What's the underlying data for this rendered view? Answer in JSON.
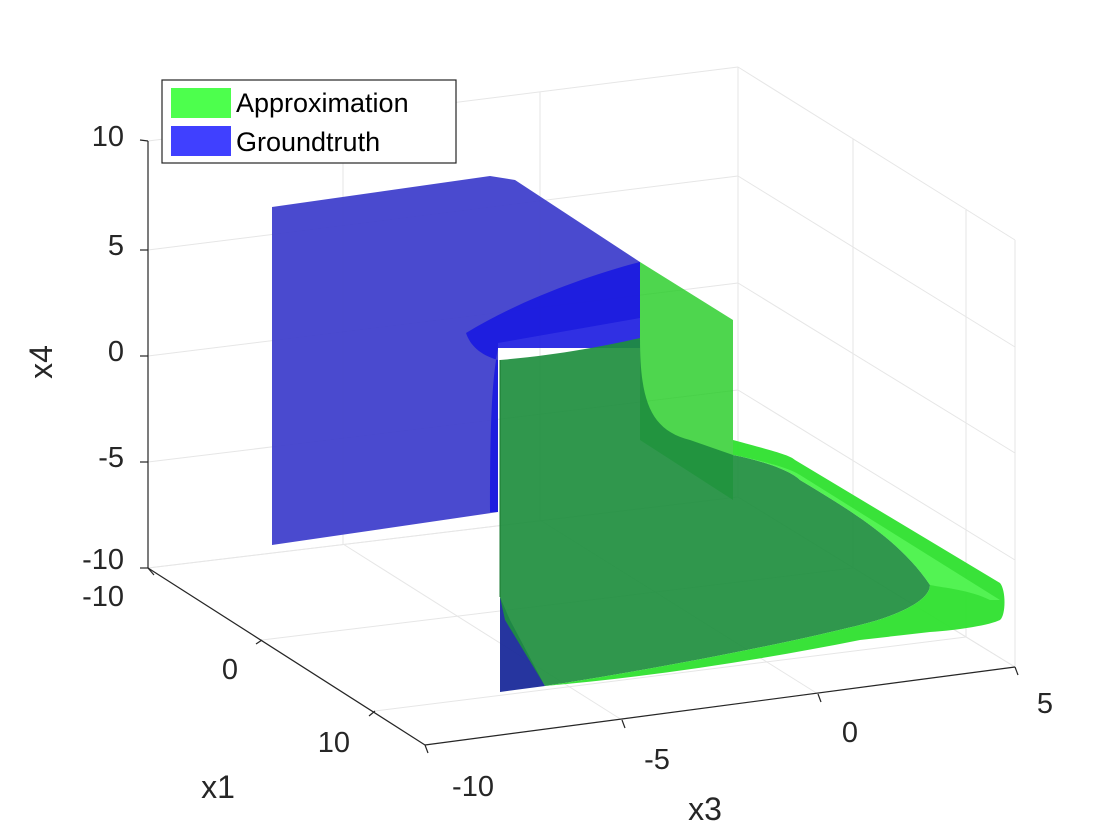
{
  "chart_data": {
    "type": "surface3d",
    "title": "",
    "axes": {
      "x1": {
        "label": "x1",
        "ticks": [
          "-10",
          "0",
          "10"
        ]
      },
      "x3": {
        "label": "x3",
        "ticks": [
          "-10",
          "-5",
          "0",
          "5"
        ]
      },
      "x4": {
        "label": "x4",
        "ticks": [
          "-10",
          "-5",
          "0",
          "5",
          "10"
        ]
      }
    },
    "zlim": [
      -10,
      10
    ],
    "grid": true,
    "legend": {
      "placement": "top-left",
      "entries": [
        {
          "name": "Approximation",
          "color": "#4dff4d"
        },
        {
          "name": "Groundtruth",
          "color": "#4040ff"
        }
      ]
    },
    "series": [
      {
        "name": "Approximation",
        "color": "#2ee02e",
        "kind": "surface",
        "opacity": 0.75
      },
      {
        "name": "Groundtruth",
        "color": "#1a1acc",
        "kind": "surface",
        "opacity": 0.75
      }
    ]
  }
}
